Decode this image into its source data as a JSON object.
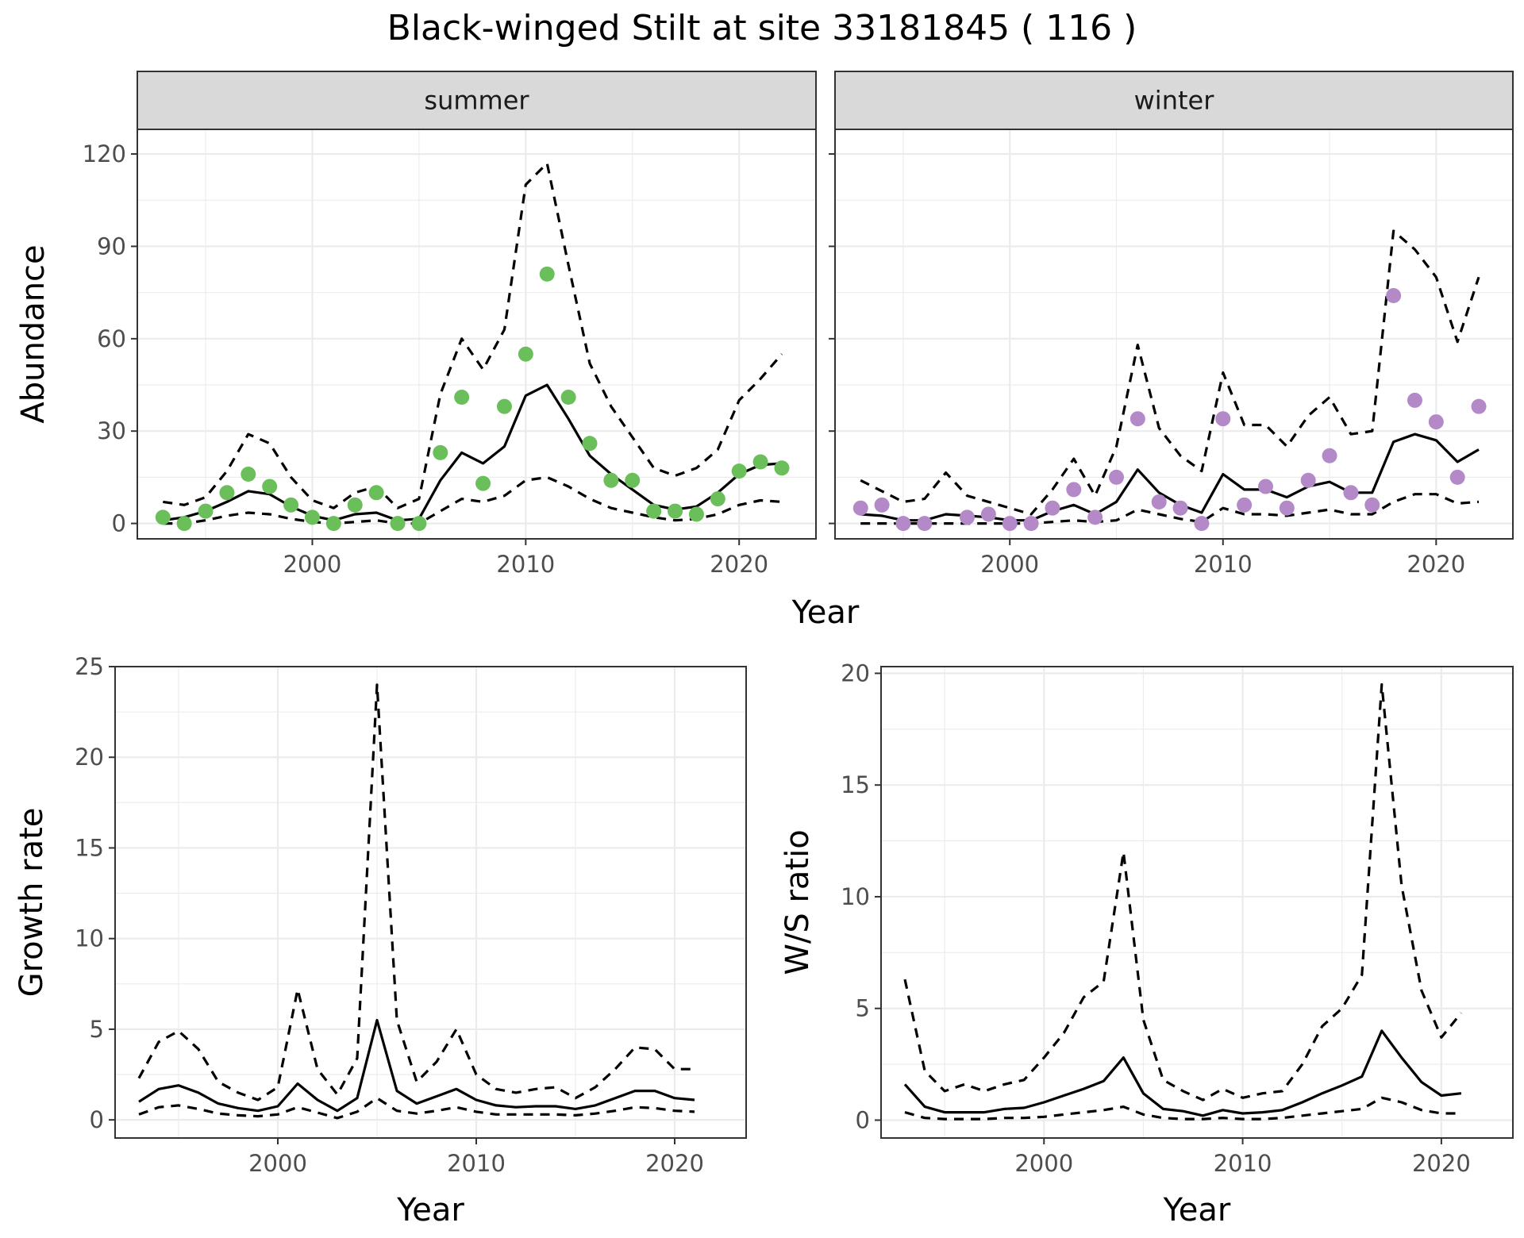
{
  "title": "Black-winged Stilt at site 33181845 ( 116 )",
  "chart_data": [
    {
      "type": "line",
      "facet": "summer",
      "xlabel": "Year",
      "ylabel": "Abundance",
      "xlim": [
        1991.8,
        2023.6
      ],
      "ylim": [
        -5,
        128
      ],
      "xticks": [
        2000,
        2010,
        2020
      ],
      "yticks": [
        0,
        30,
        60,
        90,
        120
      ],
      "point_color": "#6abf5a",
      "x": [
        1993,
        1994,
        1995,
        1996,
        1997,
        1998,
        1999,
        2000,
        2001,
        2002,
        2003,
        2004,
        2005,
        2006,
        2007,
        2008,
        2009,
        2010,
        2011,
        2012,
        2013,
        2014,
        2015,
        2016,
        2017,
        2018,
        2019,
        2020,
        2021,
        2022
      ],
      "observed": [
        2,
        0,
        4,
        10,
        16,
        12,
        6,
        2,
        0,
        6,
        10,
        0,
        0,
        23,
        41,
        13,
        38,
        55,
        81,
        41,
        26,
        14,
        14,
        4,
        4,
        3,
        8,
        17,
        20,
        18
      ],
      "fitted": [
        1,
        2,
        4,
        7,
        10.5,
        9.5,
        5.5,
        2.5,
        1,
        3,
        3.5,
        1,
        1.5,
        14,
        23,
        19.5,
        25,
        41.5,
        45,
        34,
        22,
        16,
        11,
        6,
        4.5,
        5.5,
        10,
        16,
        19,
        19.5
      ],
      "upper": [
        7,
        6,
        8.5,
        17,
        29,
        26,
        15,
        7.5,
        5,
        10,
        12,
        5,
        8,
        42,
        60,
        50,
        63,
        110,
        117,
        84,
        52,
        38,
        28,
        18,
        15.5,
        18,
        24,
        40,
        47,
        55
      ],
      "lower": [
        0,
        0,
        1,
        2.5,
        3.5,
        3,
        1.5,
        0.5,
        0,
        0.5,
        1,
        0,
        0,
        4,
        8,
        7,
        9,
        14,
        15,
        12,
        8,
        5,
        3.5,
        2,
        1,
        1.5,
        3,
        6,
        7.5,
        7
      ]
    },
    {
      "type": "line",
      "facet": "winter",
      "xlabel": "Year",
      "ylabel": "Abundance",
      "xlim": [
        1991.8,
        2023.6
      ],
      "ylim": [
        -5,
        128
      ],
      "xticks": [
        2000,
        2010,
        2020
      ],
      "yticks": [
        0,
        30,
        60,
        90,
        120
      ],
      "point_color": "#b389c8",
      "x": [
        1993,
        1994,
        1995,
        1996,
        1997,
        1998,
        1999,
        2000,
        2001,
        2002,
        2003,
        2004,
        2005,
        2006,
        2007,
        2008,
        2009,
        2010,
        2011,
        2012,
        2013,
        2014,
        2015,
        2016,
        2017,
        2018,
        2019,
        2020,
        2021,
        2022
      ],
      "observed": [
        5,
        6,
        0,
        0,
        null,
        2,
        3,
        0,
        0,
        5,
        11,
        2,
        15,
        34,
        7,
        5,
        0,
        34,
        6,
        12,
        5,
        14,
        22,
        10,
        6,
        74,
        40,
        33,
        15,
        38
      ],
      "fitted": [
        3,
        2.5,
        1,
        1,
        3,
        2.5,
        2,
        1,
        1,
        4,
        6,
        3,
        7,
        17.5,
        10,
        6,
        3.5,
        16,
        11,
        11,
        8.5,
        12,
        13.5,
        10,
        10,
        26.5,
        29,
        27,
        20,
        24
      ],
      "upper": [
        14,
        10.5,
        7,
        8,
        16.5,
        9,
        7,
        5,
        3,
        11,
        21,
        9,
        25,
        58,
        31,
        22,
        17,
        49,
        32,
        32,
        25,
        35,
        41,
        29,
        30,
        95,
        89,
        80,
        59,
        80
      ],
      "lower": [
        0,
        0,
        0,
        0,
        0,
        0,
        0,
        0,
        0,
        0.5,
        1,
        0.5,
        1,
        4.5,
        3,
        1.5,
        0.5,
        5,
        3,
        3,
        2.5,
        3.5,
        4.5,
        3,
        3,
        7,
        9.5,
        9.5,
        6.5,
        7
      ]
    },
    {
      "type": "line",
      "xlabel": "Year",
      "ylabel": "Growth rate",
      "xlim": [
        1991.8,
        2023.6
      ],
      "ylim": [
        -1,
        25
      ],
      "xticks": [
        2000,
        2010,
        2020
      ],
      "yticks": [
        0,
        5,
        10,
        15,
        20,
        25
      ],
      "x": [
        1993,
        1994,
        1995,
        1996,
        1997,
        1998,
        1999,
        2000,
        2001,
        2002,
        2003,
        2004,
        2005,
        2006,
        2007,
        2008,
        2009,
        2010,
        2011,
        2012,
        2013,
        2014,
        2015,
        2016,
        2017,
        2018,
        2019,
        2020,
        2021
      ],
      "fitted": [
        1,
        1.7,
        1.9,
        1.5,
        0.9,
        0.65,
        0.5,
        0.75,
        2,
        1.1,
        0.5,
        1.2,
        5.5,
        1.6,
        0.9,
        1.3,
        1.7,
        1.1,
        0.8,
        0.7,
        0.75,
        0.75,
        0.6,
        0.8,
        1.2,
        1.6,
        1.6,
        1.2,
        1.1
      ],
      "upper": [
        2.3,
        4.3,
        4.9,
        3.9,
        2.1,
        1.5,
        1.1,
        1.8,
        7.2,
        2.8,
        1.4,
        3.4,
        24,
        5.5,
        2.1,
        3.2,
        5,
        2.5,
        1.7,
        1.5,
        1.7,
        1.8,
        1.2,
        1.8,
        2.8,
        4,
        3.9,
        2.8,
        2.8
      ],
      "lower": [
        0.3,
        0.7,
        0.8,
        0.6,
        0.35,
        0.25,
        0.2,
        0.3,
        0.7,
        0.4,
        0.1,
        0.45,
        1.2,
        0.5,
        0.35,
        0.5,
        0.7,
        0.45,
        0.3,
        0.3,
        0.3,
        0.3,
        0.25,
        0.35,
        0.5,
        0.7,
        0.65,
        0.5,
        0.45
      ]
    },
    {
      "type": "line",
      "xlabel": "Year",
      "ylabel": "W/S ratio",
      "xlim": [
        1991.8,
        2023.6
      ],
      "ylim": [
        -0.8,
        20.3
      ],
      "xticks": [
        2000,
        2010,
        2020
      ],
      "yticks": [
        0,
        5,
        10,
        15,
        20
      ],
      "x": [
        1993,
        1994,
        1995,
        1996,
        1997,
        1998,
        1999,
        2000,
        2001,
        2002,
        2003,
        2004,
        2005,
        2006,
        2007,
        2008,
        2009,
        2010,
        2011,
        2012,
        2013,
        2014,
        2015,
        2016,
        2017,
        2018,
        2019,
        2020,
        2021
      ],
      "fitted": [
        1.6,
        0.6,
        0.35,
        0.35,
        0.35,
        0.5,
        0.55,
        0.8,
        1.1,
        1.4,
        1.75,
        2.8,
        1.2,
        0.5,
        0.4,
        0.2,
        0.45,
        0.3,
        0.35,
        0.45,
        0.8,
        1.2,
        1.55,
        1.95,
        4,
        2.8,
        1.7,
        1.1,
        1.2
      ],
      "upper": [
        6.3,
        2.2,
        1.3,
        1.6,
        1.3,
        1.6,
        1.8,
        2.8,
        3.9,
        5.5,
        6.2,
        12,
        4.5,
        1.8,
        1.3,
        0.9,
        1.4,
        1,
        1.2,
        1.3,
        2.5,
        4.2,
        5,
        6.5,
        19.5,
        10.5,
        5.8,
        3.7,
        4.8
      ],
      "lower": [
        0.35,
        0.1,
        0.05,
        0.05,
        0.05,
        0.1,
        0.1,
        0.15,
        0.25,
        0.35,
        0.45,
        0.6,
        0.25,
        0.1,
        0.05,
        0.05,
        0.1,
        0.05,
        0.05,
        0.1,
        0.2,
        0.3,
        0.4,
        0.5,
        1,
        0.8,
        0.45,
        0.3,
        0.3
      ]
    }
  ]
}
